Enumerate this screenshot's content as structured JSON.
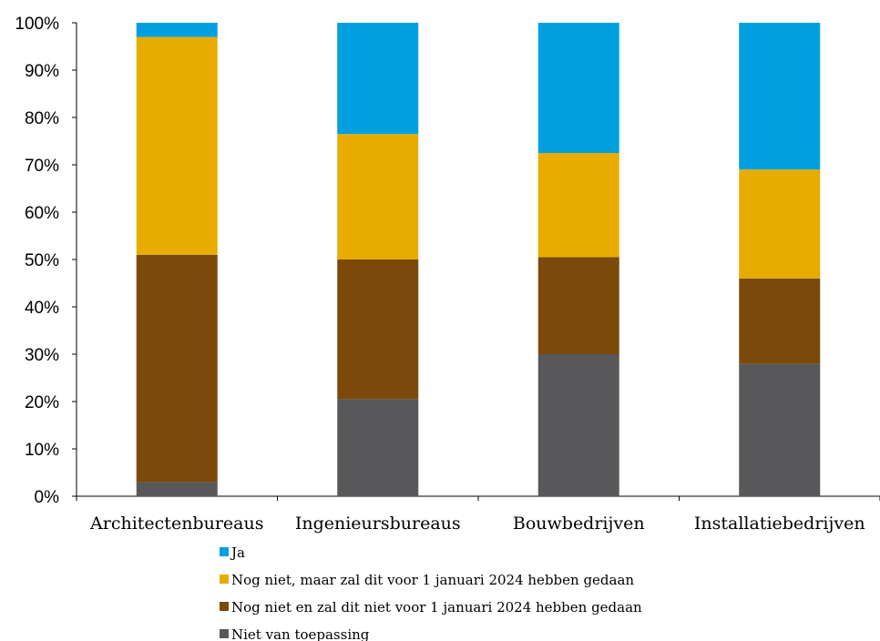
{
  "chart_data": {
    "type": "bar",
    "stacked": true,
    "percent": true,
    "categories": [
      "Architectenbureaus",
      "Ingenieursbureaus",
      "Bouwbedrijven",
      "Installatiebedrijven"
    ],
    "series": [
      {
        "name": "Niet van toepassing",
        "color": "#58585a",
        "values": [
          3,
          20.5,
          30,
          28
        ]
      },
      {
        "name": "Nog niet en zal dit niet voor 1 januari 2024 hebben gedaan",
        "color": "#7b4a0a",
        "values": [
          48,
          29.5,
          20.5,
          18
        ]
      },
      {
        "name": "Nog niet, maar zal dit voor 1 januari 2024 hebben gedaan",
        "color": "#e8ac00",
        "values": [
          46,
          26.5,
          22,
          23
        ]
      },
      {
        "name": "Ja",
        "color": "#00a0e0",
        "values": [
          3,
          23.5,
          27.5,
          31
        ]
      }
    ],
    "ylim": [
      0,
      100
    ],
    "yticks": [
      "0%",
      "10%",
      "20%",
      "30%",
      "40%",
      "50%",
      "60%",
      "70%",
      "80%",
      "90%",
      "100%"
    ],
    "legend_order": [
      "Ja",
      "Nog niet, maar zal dit voor 1 januari 2024 hebben gedaan",
      "Nog niet en zal dit niet voor 1 januari 2024 hebben gedaan",
      "Niet van toepassing"
    ],
    "legend_position": "bottom",
    "grid": false
  }
}
